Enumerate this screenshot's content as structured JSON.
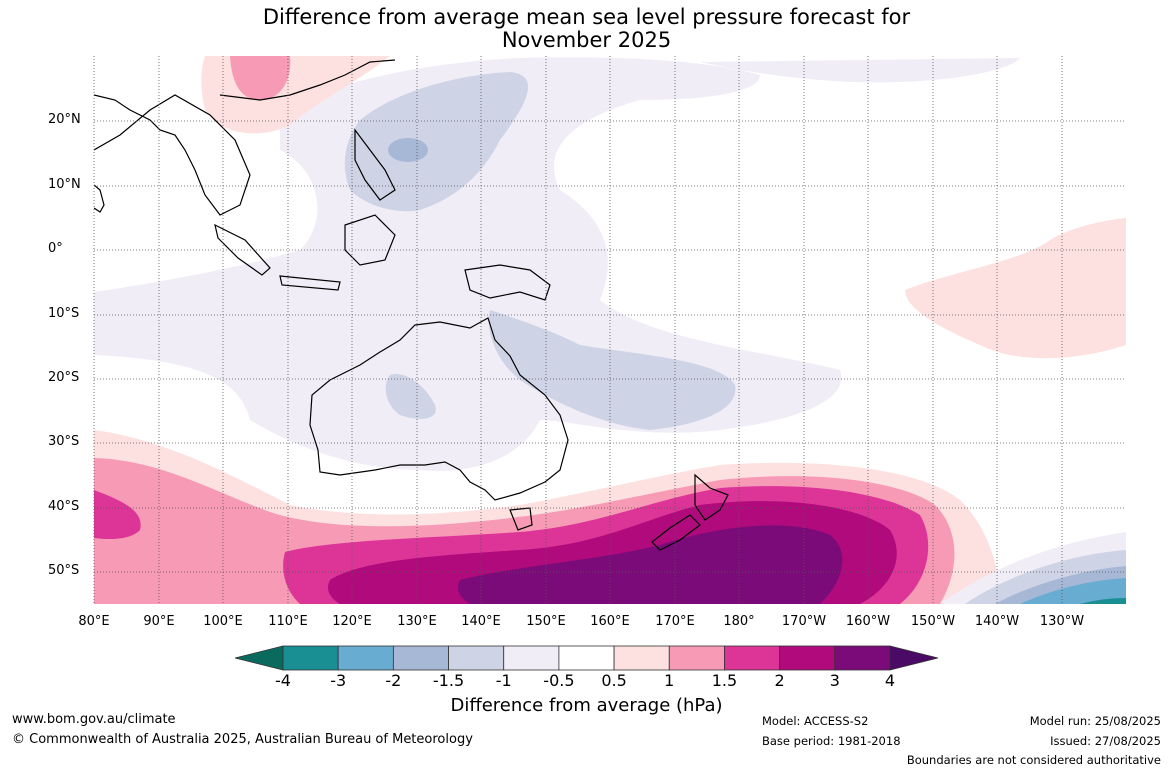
{
  "title": {
    "line1": "Difference from average mean sea level pressure forecast for",
    "line2": "November 2025"
  },
  "map": {
    "region": "Australia and surrounds",
    "lat_ticks": [
      "20°N",
      "10°N",
      "0°",
      "10°S",
      "20°S",
      "30°S",
      "40°S",
      "50°S"
    ],
    "lon_ticks": [
      "80°E",
      "90°E",
      "100°E",
      "110°E",
      "120°E",
      "130°E",
      "140°E",
      "150°E",
      "160°E",
      "170°E",
      "180°",
      "170°W",
      "160°W",
      "150°W",
      "140°W",
      "130°W"
    ],
    "grid": true
  },
  "colorbar": {
    "labels": [
      "-4",
      "-3",
      "-2",
      "-1.5",
      "-1",
      "-0.5",
      "0.5",
      "1",
      "1.5",
      "2",
      "3",
      "4"
    ],
    "colors": [
      "#0b6a5e",
      "#1a8f93",
      "#68acd2",
      "#a6b8d6",
      "#ced3e6",
      "#f1edf6",
      "#ffffff",
      "#fde0e0",
      "#f69ab6",
      "#dc3597",
      "#b00a7c",
      "#7b0b79",
      "#4a0a66"
    ],
    "title": "Difference from average (hPa)"
  },
  "footer": {
    "url": "www.bom.gov.au/climate",
    "copyright": "© Commonwealth of Australia 2025, Australian Bureau of Meteorology",
    "model": "Model: ACCESS-S2",
    "base_period": "Base period: 1981-2018",
    "model_run": "Model run: 25/08/2025",
    "issued": "Issued: 27/08/2025",
    "disclaimer": "Boundaries are not considered authoritative"
  }
}
